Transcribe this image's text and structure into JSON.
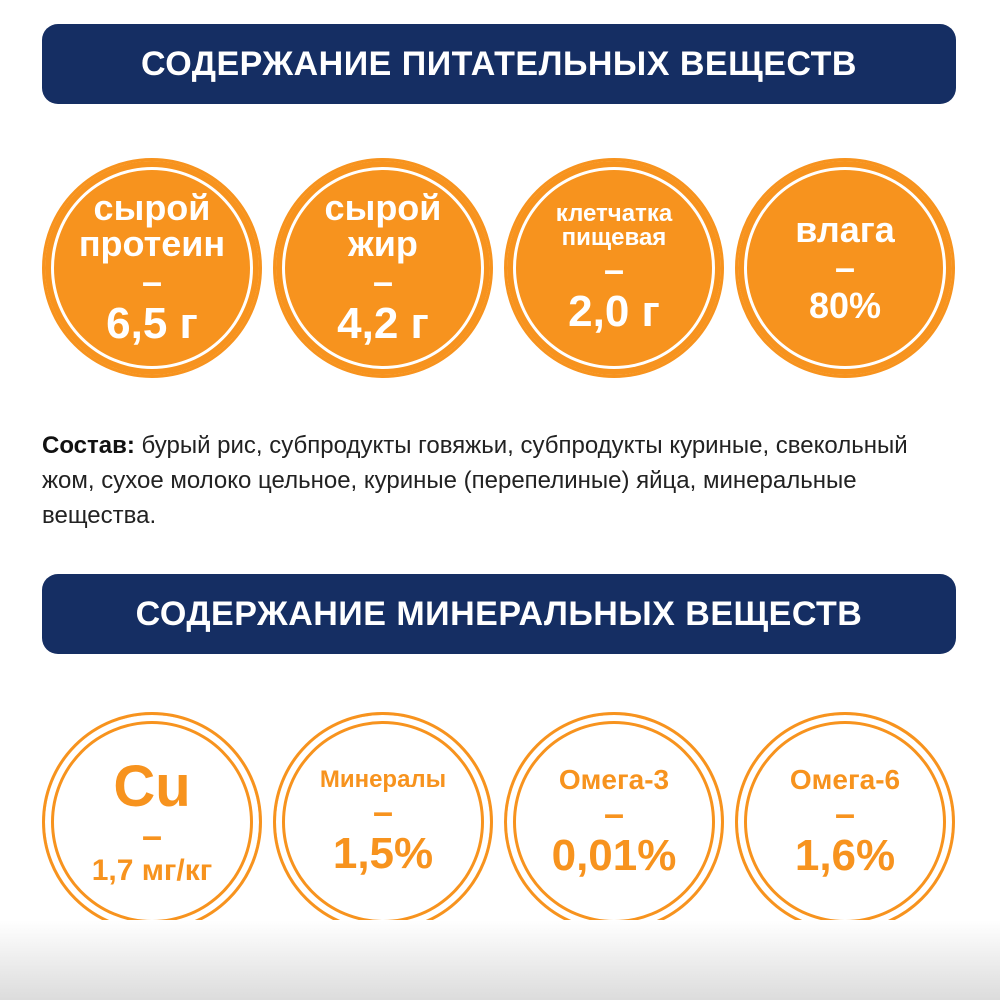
{
  "nutrients_title": "СОДЕРЖАНИЕ ПИТАТЕЛЬНЫХ ВЕЩЕСТВ",
  "nutrients": [
    {
      "label_line1": "сырой",
      "label_line2": "протеин",
      "dash": "–",
      "value": "6,5 г"
    },
    {
      "label_line1": "сырой",
      "label_line2": "жир",
      "dash": "–",
      "value": "4,2 г"
    },
    {
      "label_line1": "клетчатка",
      "label_line2": "пищевая",
      "dash": "–",
      "value": "2,0 г"
    },
    {
      "label_line1": "влага",
      "dash": "–",
      "value": "80%"
    }
  ],
  "composition": {
    "label": "Состав:",
    "text": " бурый рис, субпродукты говяжьи, субпродукты куриные, свекольный жом, сухое молоко цельное, куриные (перепелиные) яйца, минеральные вещества."
  },
  "minerals_title": "СОДЕРЖАНИЕ МИНЕРАЛЬНЫХ ВЕЩЕСТВ",
  "minerals": [
    {
      "label": "Cu",
      "dash": "–",
      "value": "1,7 мг/кг"
    },
    {
      "label": "Минералы",
      "dash": "–",
      "value": "1,5%"
    },
    {
      "label": "Омега-3",
      "dash": "–",
      "value": "0,01%"
    },
    {
      "label": "Омега-6",
      "dash": "–",
      "value": "1,6%"
    }
  ],
  "colors": {
    "banner": "#152e63",
    "accent": "#f7931e"
  }
}
